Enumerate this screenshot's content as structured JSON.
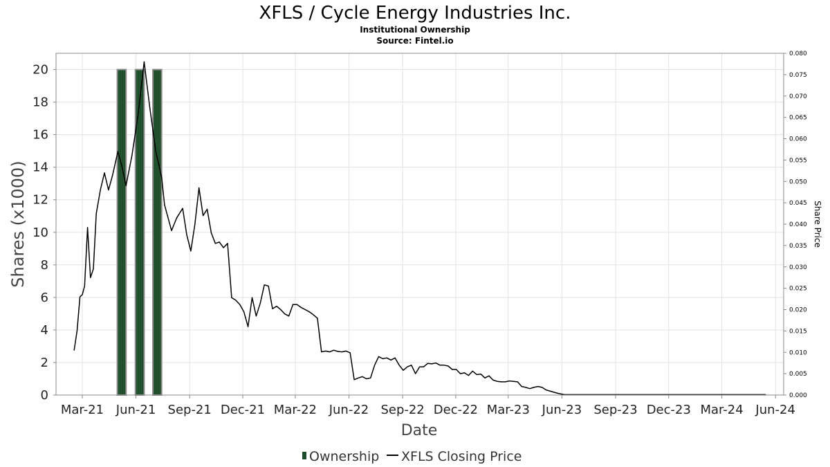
{
  "chart_data": {
    "type": "bar",
    "title": "XFLS / Cycle Energy Industries Inc.",
    "subtitle_lines": [
      "Institutional Ownership",
      "Source: Fintel.io"
    ],
    "xlabel": "Date",
    "ylabel": "Shares (x1000)",
    "ylabel_right": "Share Price",
    "x_tick_labels": [
      "Mar-21",
      "Jun-21",
      "Sep-21",
      "Dec-21",
      "Mar-22",
      "Jun-22",
      "Sep-22",
      "Dec-22",
      "Mar-23",
      "Jun-23",
      "Sep-23",
      "Dec-23",
      "Mar-24",
      "Jun-24"
    ],
    "x_tick_dates": [
      "2021-03-01",
      "2021-06-01",
      "2021-09-01",
      "2021-12-01",
      "2022-03-01",
      "2022-06-01",
      "2022-09-01",
      "2022-12-01",
      "2023-03-01",
      "2023-06-01",
      "2023-09-01",
      "2023-12-01",
      "2024-03-01",
      "2024-06-01"
    ],
    "x_range": [
      "2021-01-15",
      "2024-06-15"
    ],
    "y_left_ticks": [
      "0",
      "2",
      "4",
      "6",
      "8",
      "10",
      "12",
      "14",
      "16",
      "18",
      "20"
    ],
    "y_left_range": [
      0,
      21
    ],
    "y_right_ticks": [
      "0.000",
      "0.005",
      "0.010",
      "0.015",
      "0.020",
      "0.025",
      "0.030",
      "0.035",
      "0.040",
      "0.045",
      "0.050",
      "0.055",
      "0.060",
      "0.065",
      "0.070",
      "0.075",
      "0.080"
    ],
    "y_right_range": [
      0,
      0.08
    ],
    "grid": true,
    "legend_position": "bottom",
    "series": [
      {
        "name": "Ownership",
        "kind": "bar",
        "color": "#1f4d2b",
        "bars": [
          {
            "start": "2021-04-30",
            "end": "2021-05-15",
            "value": 20
          },
          {
            "start": "2021-05-31",
            "end": "2021-06-15",
            "value": 20
          },
          {
            "start": "2021-06-30",
            "end": "2021-07-15",
            "value": 20
          }
        ]
      },
      {
        "name": "XFLS Closing Price",
        "kind": "line",
        "color": "#000000",
        "points": [
          [
            "2021-02-15",
            0.0105
          ],
          [
            "2021-02-20",
            0.015
          ],
          [
            "2021-02-25",
            0.023
          ],
          [
            "2021-03-01",
            0.0235
          ],
          [
            "2021-03-05",
            0.0255
          ],
          [
            "2021-03-10",
            0.0392
          ],
          [
            "2021-03-15",
            0.0275
          ],
          [
            "2021-03-20",
            0.0295
          ],
          [
            "2021-03-25",
            0.0425
          ],
          [
            "2021-04-01",
            0.048
          ],
          [
            "2021-04-08",
            0.052
          ],
          [
            "2021-04-15",
            0.048
          ],
          [
            "2021-04-22",
            0.0515
          ],
          [
            "2021-05-01",
            0.057
          ],
          [
            "2021-05-08",
            0.0535
          ],
          [
            "2021-05-15",
            0.049
          ],
          [
            "2021-05-25",
            0.056
          ],
          [
            "2021-06-05",
            0.066
          ],
          [
            "2021-06-15",
            0.078
          ],
          [
            "2021-06-25",
            0.067
          ],
          [
            "2021-07-05",
            0.057
          ],
          [
            "2021-07-15",
            0.051
          ],
          [
            "2021-07-20",
            0.0445
          ],
          [
            "2021-07-25",
            0.042
          ],
          [
            "2021-08-01",
            0.0385
          ],
          [
            "2021-08-10",
            0.0415
          ],
          [
            "2021-08-20",
            0.0437
          ],
          [
            "2021-08-27",
            0.0375
          ],
          [
            "2021-09-03",
            0.0337
          ],
          [
            "2021-09-10",
            0.04
          ],
          [
            "2021-09-17",
            0.0485
          ],
          [
            "2021-09-24",
            0.042
          ],
          [
            "2021-10-01",
            0.0435
          ],
          [
            "2021-10-08",
            0.038
          ],
          [
            "2021-10-15",
            0.0355
          ],
          [
            "2021-10-22",
            0.0358
          ],
          [
            "2021-10-29",
            0.0345
          ],
          [
            "2021-11-05",
            0.0355
          ],
          [
            "2021-11-12",
            0.0228
          ],
          [
            "2021-11-19",
            0.0222
          ],
          [
            "2021-11-26",
            0.0212
          ],
          [
            "2021-12-03",
            0.0195
          ],
          [
            "2021-12-10",
            0.016
          ],
          [
            "2021-12-17",
            0.0228
          ],
          [
            "2021-12-24",
            0.0185
          ],
          [
            "2021-12-31",
            0.0215
          ],
          [
            "2022-01-07",
            0.0258
          ],
          [
            "2022-01-14",
            0.0255
          ],
          [
            "2022-01-21",
            0.0202
          ],
          [
            "2022-01-28",
            0.0208
          ],
          [
            "2022-02-04",
            0.02
          ],
          [
            "2022-02-11",
            0.019
          ],
          [
            "2022-02-18",
            0.0185
          ],
          [
            "2022-02-25",
            0.0212
          ],
          [
            "2022-03-04",
            0.0212
          ],
          [
            "2022-03-11",
            0.0205
          ],
          [
            "2022-03-18",
            0.02
          ],
          [
            "2022-03-25",
            0.0195
          ],
          [
            "2022-04-01",
            0.0188
          ],
          [
            "2022-04-08",
            0.018
          ],
          [
            "2022-04-15",
            0.0101
          ],
          [
            "2022-04-22",
            0.0103
          ],
          [
            "2022-04-29",
            0.0101
          ],
          [
            "2022-05-06",
            0.0105
          ],
          [
            "2022-05-13",
            0.0102
          ],
          [
            "2022-05-20",
            0.0101
          ],
          [
            "2022-05-27",
            0.0103
          ],
          [
            "2022-06-03",
            0.0099
          ],
          [
            "2022-06-10",
            0.0036
          ],
          [
            "2022-06-17",
            0.004
          ],
          [
            "2022-06-24",
            0.0043
          ],
          [
            "2022-07-01",
            0.0038
          ],
          [
            "2022-07-08",
            0.004
          ],
          [
            "2022-07-15",
            0.007
          ],
          [
            "2022-07-22",
            0.009
          ],
          [
            "2022-07-29",
            0.0085
          ],
          [
            "2022-08-05",
            0.0087
          ],
          [
            "2022-08-12",
            0.0082
          ],
          [
            "2022-08-19",
            0.0087
          ],
          [
            "2022-08-26",
            0.007
          ],
          [
            "2022-09-02",
            0.0058
          ],
          [
            "2022-09-09",
            0.0066
          ],
          [
            "2022-09-16",
            0.007
          ],
          [
            "2022-09-23",
            0.005
          ],
          [
            "2022-09-30",
            0.0066
          ],
          [
            "2022-10-07",
            0.0066
          ],
          [
            "2022-10-14",
            0.0074
          ],
          [
            "2022-10-21",
            0.0073
          ],
          [
            "2022-10-28",
            0.0075
          ],
          [
            "2022-11-04",
            0.007
          ],
          [
            "2022-11-11",
            0.007
          ],
          [
            "2022-11-18",
            0.0068
          ],
          [
            "2022-11-25",
            0.006
          ],
          [
            "2022-12-02",
            0.006
          ],
          [
            "2022-12-09",
            0.005
          ],
          [
            "2022-12-16",
            0.0052
          ],
          [
            "2022-12-23",
            0.0046
          ],
          [
            "2022-12-30",
            0.0056
          ],
          [
            "2023-01-06",
            0.0048
          ],
          [
            "2023-01-13",
            0.0049
          ],
          [
            "2023-01-20",
            0.004
          ],
          [
            "2023-01-27",
            0.0045
          ],
          [
            "2023-02-03",
            0.0035
          ],
          [
            "2023-02-10",
            0.0032
          ],
          [
            "2023-02-17",
            0.0031
          ],
          [
            "2023-02-24",
            0.0031
          ],
          [
            "2023-03-03",
            0.0033
          ],
          [
            "2023-03-10",
            0.0032
          ],
          [
            "2023-03-17",
            0.0031
          ],
          [
            "2023-03-24",
            0.002
          ],
          [
            "2023-03-31",
            0.0018
          ],
          [
            "2023-04-07",
            0.0015
          ],
          [
            "2023-04-14",
            0.0018
          ],
          [
            "2023-04-21",
            0.002
          ],
          [
            "2023-04-28",
            0.0018
          ],
          [
            "2023-05-05",
            0.0012
          ],
          [
            "2023-05-15",
            0.0008
          ],
          [
            "2023-05-25",
            0.0004
          ],
          [
            "2023-06-05",
            0.0001
          ],
          [
            "2023-06-15",
            0.0001
          ],
          [
            "2023-07-01",
            0.0001
          ],
          [
            "2023-08-01",
            0.0001
          ],
          [
            "2023-10-01",
            0.0001
          ],
          [
            "2024-01-01",
            0.0001
          ],
          [
            "2024-04-01",
            0.0001
          ],
          [
            "2024-05-15",
            0.0001
          ]
        ]
      }
    ]
  },
  "legend": {
    "items": [
      {
        "label": "Ownership",
        "marker": "bar",
        "color": "#1f4d2b"
      },
      {
        "label": "XFLS Closing Price",
        "marker": "line",
        "color": "#000000"
      }
    ]
  }
}
